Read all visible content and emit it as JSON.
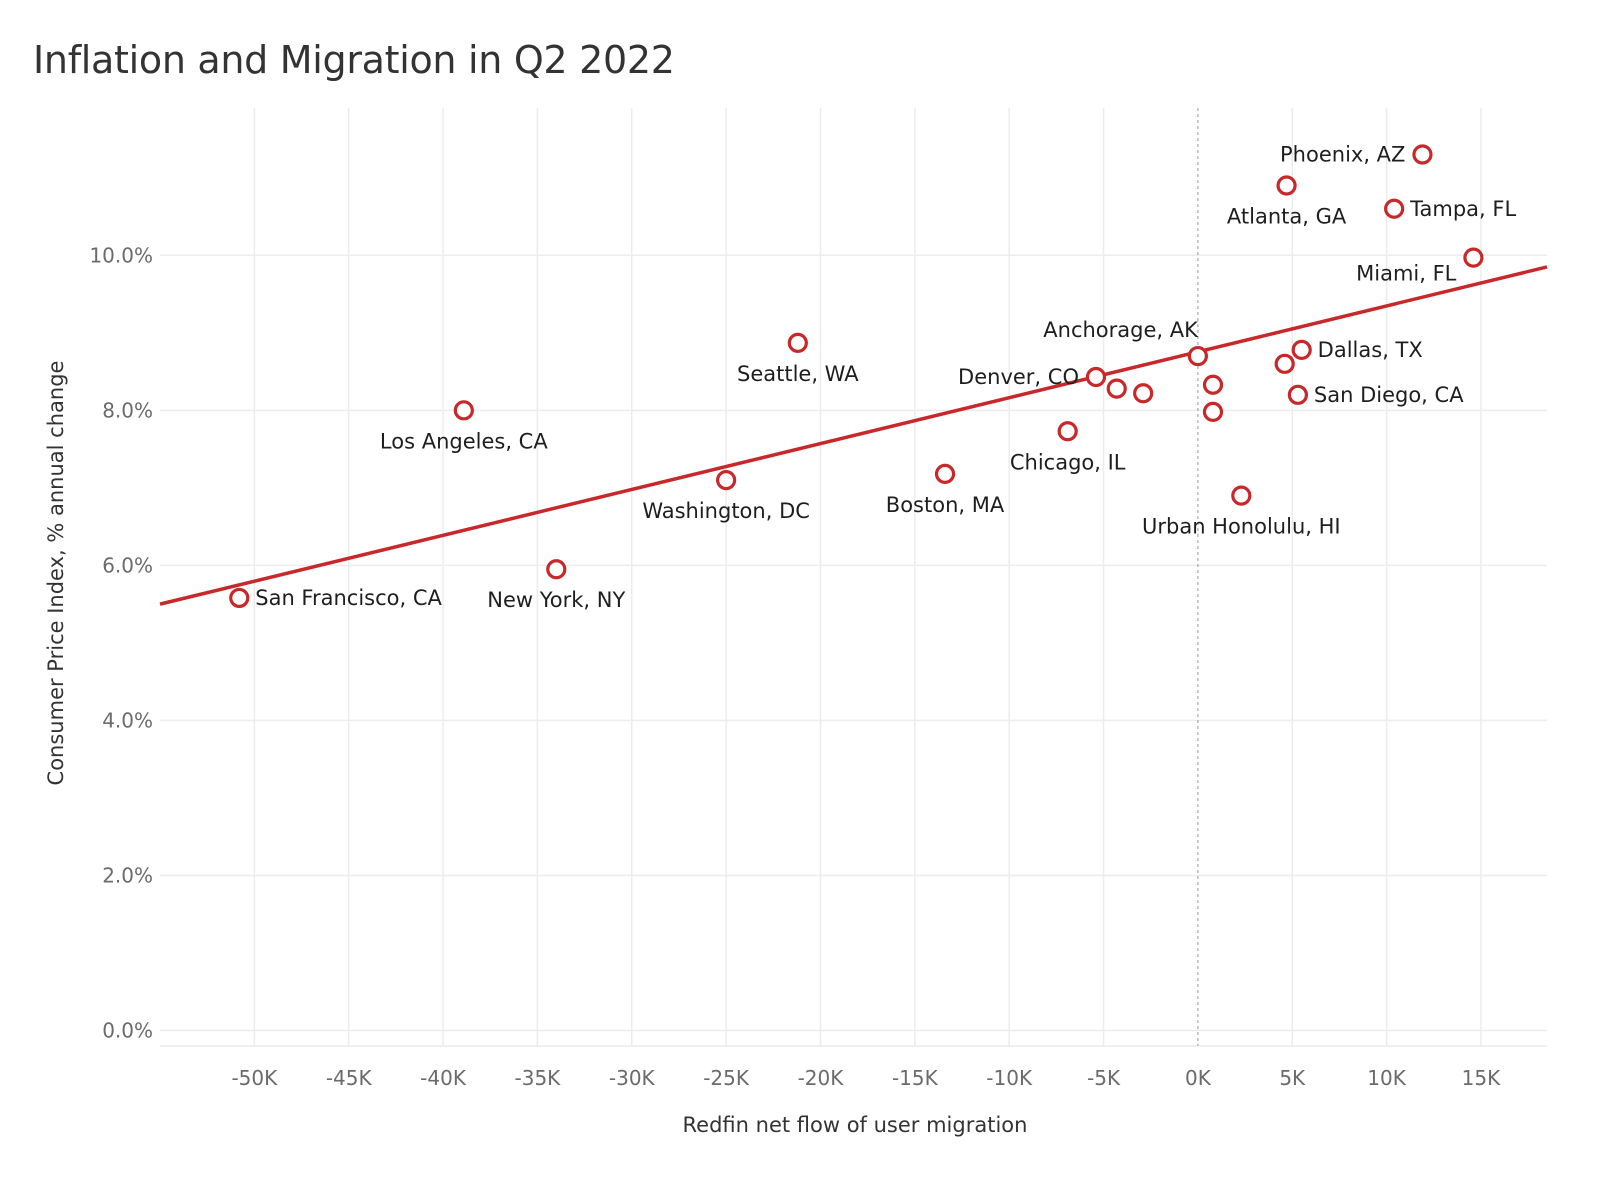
{
  "title": "Inflation and Migration in Q2 2022",
  "chart_data": {
    "type": "scatter",
    "title": "Inflation and Migration in Q2 2022",
    "xlabel": "Redfin net flow of user migration",
    "ylabel": "Consumer Price Index, % annual change",
    "xlim": [
      -55000,
      18500
    ],
    "ylim": [
      -0.2,
      11.9
    ],
    "x_ticks": [
      -50000,
      -45000,
      -40000,
      -35000,
      -30000,
      -25000,
      -20000,
      -15000,
      -10000,
      -5000,
      0,
      5000,
      10000,
      15000
    ],
    "x_tick_labels": [
      "-50K",
      "-45K",
      "-40K",
      "-35K",
      "-30K",
      "-25K",
      "-20K",
      "-15K",
      "-10K",
      "-5K",
      "0K",
      "5K",
      "10K",
      "15K"
    ],
    "y_ticks": [
      0,
      2,
      4,
      6,
      8,
      10
    ],
    "y_tick_labels": [
      "0.0%",
      "2.0%",
      "4.0%",
      "6.0%",
      "8.0%",
      "10.0%"
    ],
    "grid": true,
    "zero_reference_line": "dashed vertical at x = 0",
    "marker_color": "#c8282a",
    "trend_color": "#c8282a",
    "trend_line": {
      "x": [
        -55000,
        18500
      ],
      "y": [
        5.5,
        9.85
      ]
    },
    "points": [
      {
        "label": "Phoenix, AZ",
        "x": 11900,
        "y": 11.3,
        "label_pos": "left"
      },
      {
        "label": "Atlanta, GA",
        "x": 4700,
        "y": 10.9,
        "label_pos": "below"
      },
      {
        "label": "Tampa, FL",
        "x": 10400,
        "y": 10.6,
        "label_pos": "right"
      },
      {
        "label": "Miami, FL",
        "x": 14600,
        "y": 9.97,
        "label_pos": "below-left"
      },
      {
        "label": "Anchorage, AK",
        "x": 0,
        "y": 8.7,
        "label_pos": "above-left"
      },
      {
        "label": "Dallas, TX",
        "x": 5500,
        "y": 8.78,
        "label_pos": "right"
      },
      {
        "label": "",
        "x": 4600,
        "y": 8.6
      },
      {
        "label": "Seattle, WA",
        "x": -21200,
        "y": 8.87,
        "label_pos": "below"
      },
      {
        "label": "Denver, CO",
        "x": -5400,
        "y": 8.43,
        "label_pos": "left"
      },
      {
        "label": "",
        "x": -4300,
        "y": 8.28
      },
      {
        "label": "",
        "x": -2900,
        "y": 8.22
      },
      {
        "label": "",
        "x": 800,
        "y": 8.33
      },
      {
        "label": "San Diego, CA",
        "x": 5300,
        "y": 8.2,
        "label_pos": "right"
      },
      {
        "label": "",
        "x": 800,
        "y": 7.98
      },
      {
        "label": "Los Angeles, CA",
        "x": -38900,
        "y": 8.0,
        "label_pos": "below"
      },
      {
        "label": "Chicago, IL",
        "x": -6900,
        "y": 7.73,
        "label_pos": "below"
      },
      {
        "label": "Boston, MA",
        "x": -13400,
        "y": 7.18,
        "label_pos": "below"
      },
      {
        "label": "Washington, DC",
        "x": -25000,
        "y": 7.1,
        "label_pos": "below"
      },
      {
        "label": "Urban Honolulu, HI",
        "x": 2300,
        "y": 6.9,
        "label_pos": "below"
      },
      {
        "label": "New York, NY",
        "x": -34000,
        "y": 5.95,
        "label_pos": "below"
      },
      {
        "label": "San Francisco, CA",
        "x": -50800,
        "y": 5.58,
        "label_pos": "right"
      }
    ]
  }
}
